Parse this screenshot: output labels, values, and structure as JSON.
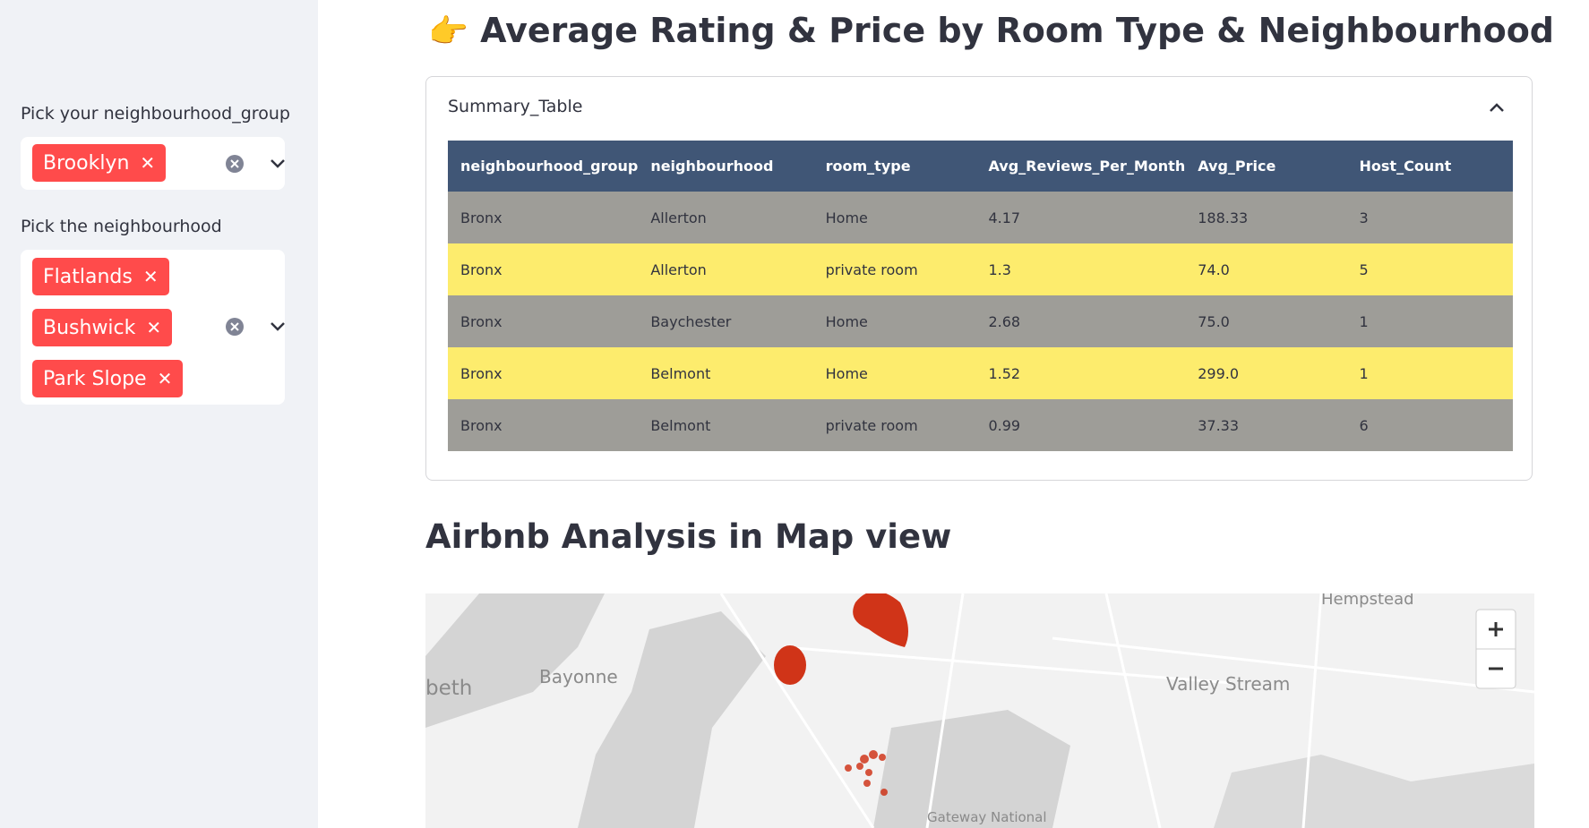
{
  "sidebar": {
    "group_label": "Pick your neighbourhood_group",
    "group_selected": [
      "Brooklyn"
    ],
    "neighbourhood_label": "Pick the neighbourhood",
    "neighbourhood_selected": [
      "Flatlands",
      "Bushwick",
      "Park Slope"
    ]
  },
  "main": {
    "title": "Average Rating & Price by Room Type & Neighbourhood",
    "expander": {
      "label": "Summary_Table"
    },
    "table": {
      "columns": [
        "neighbourhood_group",
        "neighbourhood",
        "room_type",
        "Avg_Reviews_Per_Month",
        "Avg_Price",
        "Host_Count"
      ],
      "rows": [
        [
          "Bronx",
          "Allerton",
          "Home",
          "4.17",
          "188.33",
          "3"
        ],
        [
          "Bronx",
          "Allerton",
          "private room",
          "1.3",
          "74.0",
          "5"
        ],
        [
          "Bronx",
          "Baychester",
          "Home",
          "2.68",
          "75.0",
          "1"
        ],
        [
          "Bronx",
          "Belmont",
          "Home",
          "1.52",
          "299.0",
          "1"
        ],
        [
          "Bronx",
          "Belmont",
          "private room",
          "0.99",
          "37.33",
          "6"
        ]
      ]
    },
    "map_heading": "Airbnb Analysis in Map view"
  },
  "map": {
    "labels": [
      "beth",
      "Bayonne",
      "Valley Stream",
      "Hempstead",
      "Gateway National"
    ]
  }
}
